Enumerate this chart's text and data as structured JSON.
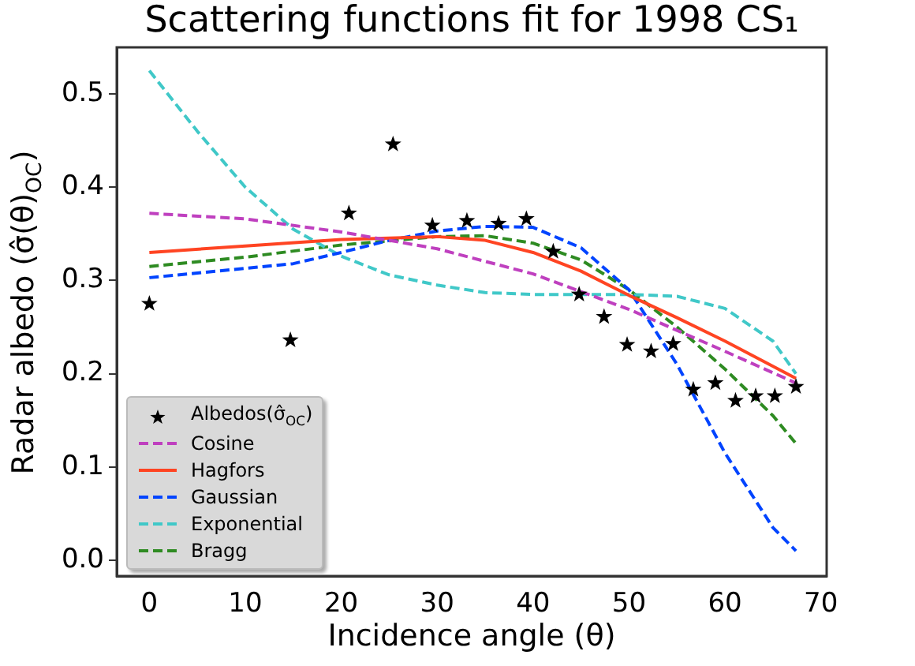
{
  "chart_data": {
    "type": "line",
    "title": "Scattering functions fit for 1998 CS₁",
    "xlabel": "Incidence angle (θ)",
    "ylabel": "Radar albedo (σ̂(θ)$_{OC}$)",
    "xlim": [
      -3.4,
      70.6
    ],
    "xticks": [
      0,
      10,
      20,
      30,
      40,
      50,
      60,
      70
    ],
    "ylim": [
      -0.017,
      0.55
    ],
    "yticks": [
      {
        "value": 0,
        "label": "0.0"
      },
      0.1,
      0.2,
      0.3,
      0.4,
      0.5
    ],
    "grid": false,
    "legend": "bottom left",
    "series": [
      {
        "name": "Albedos(σ̂$_{OC}$)",
        "type": "scatter",
        "marker": "star",
        "color": "#000000",
        "x": [
          0,
          14.7,
          20.8,
          25.4,
          29.5,
          33.1,
          36.4,
          39.3,
          42.1,
          44.8,
          47.4,
          49.8,
          52.3,
          54.6,
          56.7,
          59.0,
          61.1,
          63.2,
          65.2,
          67.4
        ],
        "values": [
          0.275,
          0.236,
          0.372,
          0.446,
          0.359,
          0.364,
          0.361,
          0.366,
          0.331,
          0.285,
          0.261,
          0.231,
          0.224,
          0.232,
          0.183,
          0.19,
          0.171,
          0.176,
          0.176,
          0.186
        ]
      },
      {
        "name": "Cosine",
        "line_style": "dashed",
        "marker": "none",
        "color": "#bf40bf",
        "x": [
          0,
          10,
          20,
          30,
          40,
          50,
          60,
          67.4
        ],
        "values": [
          0.372,
          0.366,
          0.352,
          0.334,
          0.307,
          0.269,
          0.224,
          0.19
        ]
      },
      {
        "name": "Hagfors",
        "line_style": "solid",
        "marker": "none",
        "color": "#ff4422",
        "x": [
          0,
          10,
          20,
          30,
          35,
          40,
          45,
          50,
          55,
          60,
          67.4
        ],
        "values": [
          0.33,
          0.337,
          0.344,
          0.347,
          0.343,
          0.33,
          0.31,
          0.284,
          0.26,
          0.235,
          0.195
        ]
      },
      {
        "name": "Gaussian",
        "line_style": "dashed",
        "marker": "none",
        "color": "#0044ff",
        "x": [
          0,
          10,
          15,
          20,
          25,
          30,
          35,
          40,
          45,
          50,
          55,
          60,
          65,
          67.4
        ],
        "values": [
          0.303,
          0.313,
          0.318,
          0.33,
          0.343,
          0.353,
          0.358,
          0.357,
          0.335,
          0.29,
          0.21,
          0.115,
          0.035,
          0.01
        ]
      },
      {
        "name": "Exponential",
        "line_style": "dashed",
        "marker": "none",
        "color": "#40c8c8",
        "x": [
          0,
          5,
          10,
          15,
          20,
          25,
          30,
          35,
          40,
          45,
          50,
          55,
          60,
          65,
          67.4
        ],
        "values": [
          0.525,
          0.46,
          0.4,
          0.355,
          0.326,
          0.306,
          0.295,
          0.287,
          0.285,
          0.285,
          0.285,
          0.283,
          0.27,
          0.235,
          0.2
        ]
      },
      {
        "name": "Bragg",
        "line_style": "dashed",
        "marker": "none",
        "color": "#2e8b22",
        "x": [
          0,
          10,
          20,
          30,
          35,
          40,
          45,
          50,
          55,
          60,
          65,
          67.4
        ],
        "values": [
          0.315,
          0.325,
          0.338,
          0.347,
          0.348,
          0.34,
          0.322,
          0.29,
          0.25,
          0.205,
          0.155,
          0.125
        ]
      }
    ]
  }
}
